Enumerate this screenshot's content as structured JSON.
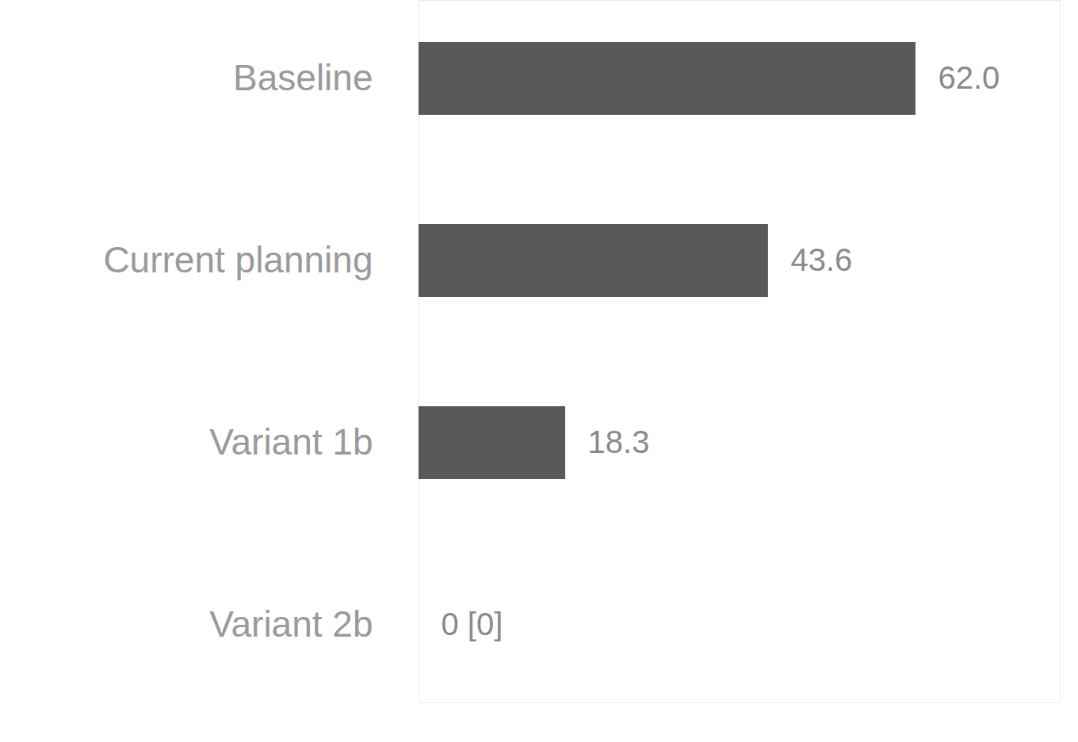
{
  "chart_data": {
    "type": "bar",
    "orientation": "horizontal",
    "categories": [
      "Baseline",
      "Current planning",
      "Variant 1b",
      "Variant 2b"
    ],
    "values": [
      62.0,
      43.6,
      18.3,
      0
    ],
    "value_labels": [
      "62.0",
      "43.6",
      "18.3",
      "0 [0]"
    ],
    "color": "#58595b",
    "xlim": [
      0,
      80
    ],
    "data_labels": true,
    "tick_labels": "y",
    "grid": false
  }
}
